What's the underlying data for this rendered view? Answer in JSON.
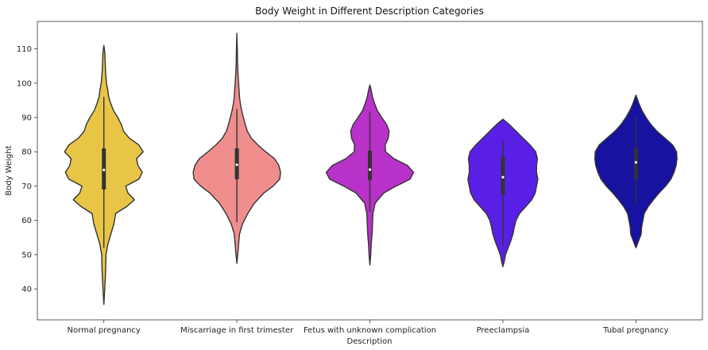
{
  "chart_data": {
    "type": "violin",
    "title": "Body Weight in Different Description Categories",
    "xlabel": "Description",
    "ylabel": "Body Weight",
    "ylim": [
      31,
      118
    ],
    "yticks": [
      40,
      50,
      60,
      70,
      80,
      90,
      100,
      110
    ],
    "grid": false,
    "categories": [
      "Normal pregnancy",
      "Miscarriage in first trimester",
      "Fetus with unknown complication",
      "Preeclampsia",
      "Tubal pregnancy"
    ],
    "violins": [
      {
        "category": "Normal pregnancy",
        "color": "#E8C547",
        "min": 35.5,
        "max": 111,
        "q1": 69,
        "median": 74.7,
        "q3": 81,
        "whisker_low": 52,
        "whisker_high": 96,
        "profile": [
          [
            35.5,
            0.0
          ],
          [
            40,
            0.02
          ],
          [
            45,
            0.04
          ],
          [
            50,
            0.05
          ],
          [
            53,
            0.09
          ],
          [
            56,
            0.16
          ],
          [
            59,
            0.23
          ],
          [
            62,
            0.27
          ],
          [
            64,
            0.52
          ],
          [
            66,
            0.7
          ],
          [
            68,
            0.55
          ],
          [
            70,
            0.5
          ],
          [
            72,
            0.8
          ],
          [
            74,
            0.88
          ],
          [
            76,
            0.78
          ],
          [
            78,
            0.75
          ],
          [
            80,
            0.9
          ],
          [
            82,
            0.8
          ],
          [
            84,
            0.58
          ],
          [
            86,
            0.45
          ],
          [
            88,
            0.4
          ],
          [
            90,
            0.32
          ],
          [
            92,
            0.22
          ],
          [
            94,
            0.16
          ],
          [
            96,
            0.11
          ],
          [
            98,
            0.09
          ],
          [
            100,
            0.06
          ],
          [
            103,
            0.04
          ],
          [
            106,
            0.03
          ],
          [
            109,
            0.02
          ],
          [
            111,
            0.0
          ]
        ]
      },
      {
        "category": "Miscarriage in first trimester",
        "color": "#F08E8E",
        "min": 47.5,
        "max": 114.5,
        "q1": 72,
        "median": 76.2,
        "q3": 81,
        "whisker_low": 59.5,
        "whisker_high": 92.5,
        "profile": [
          [
            47.5,
            0.0
          ],
          [
            50,
            0.02
          ],
          [
            53,
            0.04
          ],
          [
            56,
            0.06
          ],
          [
            59,
            0.13
          ],
          [
            62,
            0.25
          ],
          [
            65,
            0.4
          ],
          [
            68,
            0.62
          ],
          [
            70,
            0.83
          ],
          [
            72,
            0.98
          ],
          [
            74,
            1.0
          ],
          [
            76,
            0.96
          ],
          [
            78,
            0.86
          ],
          [
            80,
            0.66
          ],
          [
            82,
            0.48
          ],
          [
            84,
            0.33
          ],
          [
            86,
            0.24
          ],
          [
            88,
            0.19
          ],
          [
            90,
            0.15
          ],
          [
            92,
            0.11
          ],
          [
            94,
            0.08
          ],
          [
            96,
            0.06
          ],
          [
            98,
            0.05
          ],
          [
            100,
            0.04
          ],
          [
            103,
            0.025
          ],
          [
            106,
            0.015
          ],
          [
            110,
            0.01
          ],
          [
            114.5,
            0.0
          ]
        ]
      },
      {
        "category": "Fetus with unknown complication",
        "color": "#B832C9",
        "min": 47,
        "max": 99.5,
        "q1": 71.7,
        "median": 74.8,
        "q3": 80.3,
        "whisker_low": 62.5,
        "whisker_high": 91.5,
        "profile": [
          [
            47,
            0.0
          ],
          [
            50,
            0.02
          ],
          [
            53,
            0.03
          ],
          [
            56,
            0.05
          ],
          [
            59,
            0.06
          ],
          [
            62,
            0.07
          ],
          [
            65,
            0.12
          ],
          [
            68,
            0.32
          ],
          [
            70,
            0.6
          ],
          [
            72,
            0.92
          ],
          [
            74,
            1.0
          ],
          [
            76,
            0.86
          ],
          [
            78,
            0.55
          ],
          [
            80,
            0.36
          ],
          [
            82,
            0.35
          ],
          [
            84,
            0.42
          ],
          [
            86,
            0.44
          ],
          [
            88,
            0.38
          ],
          [
            90,
            0.27
          ],
          [
            92,
            0.17
          ],
          [
            94,
            0.11
          ],
          [
            96,
            0.06
          ],
          [
            98,
            0.03
          ],
          [
            99.5,
            0.0
          ]
        ]
      },
      {
        "category": "Preeclampsia",
        "color": "#5A1FE6",
        "min": 46.5,
        "max": 89.5,
        "q1": 67.5,
        "median": 72.6,
        "q3": 78.5,
        "whisker_low": 52.5,
        "whisker_high": 83.5,
        "profile": [
          [
            46.5,
            0.0
          ],
          [
            48,
            0.03
          ],
          [
            50,
            0.06
          ],
          [
            52,
            0.12
          ],
          [
            54,
            0.18
          ],
          [
            56,
            0.23
          ],
          [
            58,
            0.26
          ],
          [
            60,
            0.3
          ],
          [
            62,
            0.38
          ],
          [
            64,
            0.52
          ],
          [
            66,
            0.66
          ],
          [
            68,
            0.74
          ],
          [
            70,
            0.77
          ],
          [
            72,
            0.8
          ],
          [
            74,
            0.77
          ],
          [
            76,
            0.77
          ],
          [
            78,
            0.79
          ],
          [
            80,
            0.75
          ],
          [
            82,
            0.62
          ],
          [
            84,
            0.46
          ],
          [
            86,
            0.3
          ],
          [
            88,
            0.14
          ],
          [
            89.5,
            0.0
          ]
        ]
      },
      {
        "category": "Tubal pregnancy",
        "color": "#1712A0",
        "min": 52,
        "max": 96.5,
        "q1": 72,
        "median": 76.9,
        "q3": 81,
        "whisker_low": 64.5,
        "whisker_high": 90.5,
        "profile": [
          [
            52,
            0.0
          ],
          [
            54,
            0.06
          ],
          [
            56,
            0.12
          ],
          [
            58,
            0.13
          ],
          [
            60,
            0.16
          ],
          [
            62,
            0.19
          ],
          [
            64,
            0.28
          ],
          [
            66,
            0.4
          ],
          [
            68,
            0.53
          ],
          [
            70,
            0.68
          ],
          [
            72,
            0.8
          ],
          [
            74,
            0.87
          ],
          [
            76,
            0.92
          ],
          [
            78,
            0.94
          ],
          [
            80,
            0.93
          ],
          [
            82,
            0.84
          ],
          [
            84,
            0.66
          ],
          [
            86,
            0.48
          ],
          [
            88,
            0.34
          ],
          [
            90,
            0.23
          ],
          [
            92,
            0.14
          ],
          [
            94,
            0.07
          ],
          [
            96.5,
            0.0
          ]
        ]
      }
    ]
  }
}
